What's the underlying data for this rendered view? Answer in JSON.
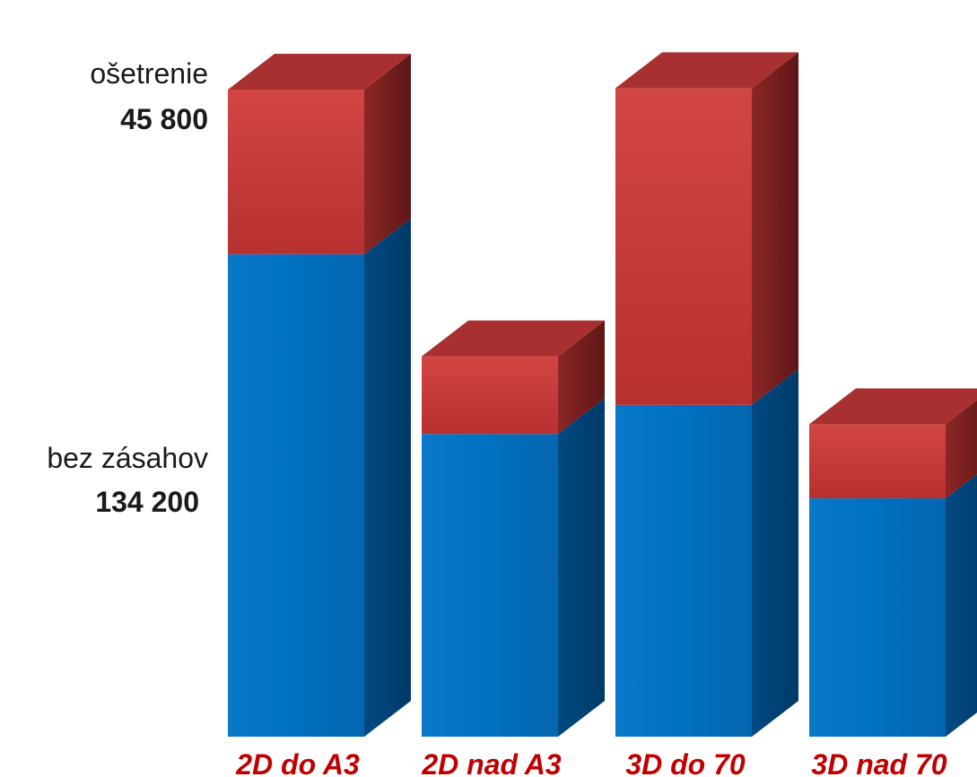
{
  "chart_data": {
    "type": "bar",
    "stacked": true,
    "three_d": true,
    "categories": [
      "2D do A3",
      "2D nad A3",
      "3D do 70",
      "3D nad 70"
    ],
    "series": [
      {
        "name": "bez zásahov",
        "values": [
          134200,
          84200,
          92300,
          66300
        ]
      },
      {
        "name": "ošetrenie",
        "values": [
          45800,
          21600,
          88100,
          20600
        ]
      }
    ],
    "series_value_labels": [
      "134 200",
      "45 800"
    ],
    "ylim": [
      0,
      180000
    ],
    "grid": false,
    "legend": "left",
    "colors": {
      "base_front": "#0070c0",
      "base_side": "#00477d",
      "top_front": "#cc3b3b",
      "top_side": "#7a1e1e",
      "top_cap": "#a83030",
      "category_text": "#c00000"
    }
  }
}
